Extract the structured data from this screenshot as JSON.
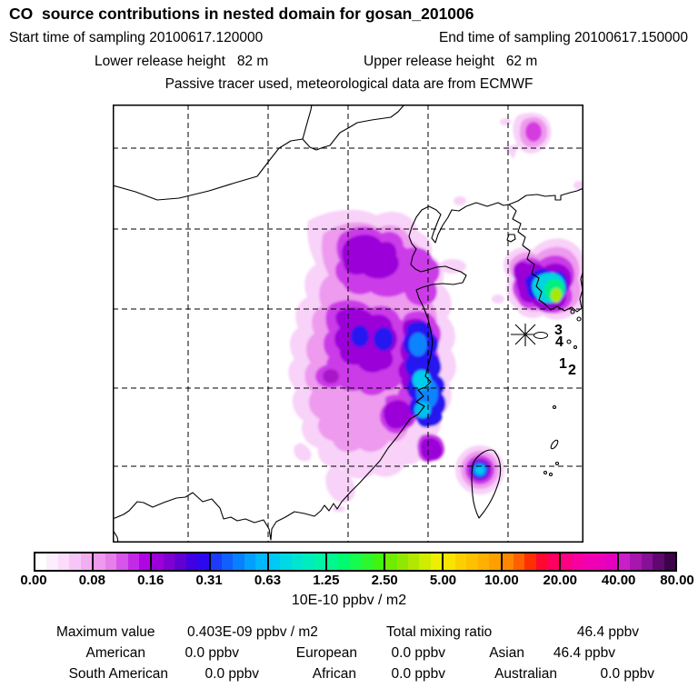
{
  "header": {
    "title": "CO  source contributions in nested domain for gosan_201006",
    "start_time": "Start time of sampling 20100617.120000",
    "end_time": "End time of sampling 20100617.150000",
    "lower_release": "Lower release height   82 m",
    "upper_release": "Upper release height   62 m",
    "tracer_line": "Passive tracer used, meteorological data are from ECMWF"
  },
  "map": {
    "marker_labels": [
      "3",
      "4",
      "1",
      "2"
    ]
  },
  "colorbar": {
    "unit": "10E-10 ppbv / m2",
    "tick_labels": [
      "0.00",
      "0.08",
      "0.16",
      "0.31",
      "0.63",
      "1.25",
      "2.50",
      "5.00",
      "10.00",
      "20.00",
      "40.00",
      "80.00"
    ],
    "segments": [
      {
        "from": 0.0,
        "to": 0.08,
        "colors": [
          "#ffffff",
          "#fdeefd",
          "#fbdcfb",
          "#f7c6f7",
          "#f2aef2"
        ]
      },
      {
        "from": 0.08,
        "to": 0.16,
        "colors": [
          "#ee9aee",
          "#e67fe9",
          "#d556e8",
          "#c32ae8",
          "#b005e2"
        ]
      },
      {
        "from": 0.16,
        "to": 0.31,
        "colors": [
          "#9c00d8",
          "#8000d2",
          "#6000d2",
          "#4000e0",
          "#2b08f0"
        ]
      },
      {
        "from": 0.31,
        "to": 0.63,
        "colors": [
          "#1c3cfa",
          "#0f60ff",
          "#0880ff",
          "#04a0ff",
          "#00b8ff"
        ]
      },
      {
        "from": 0.63,
        "to": 1.25,
        "colors": [
          "#00c8f4",
          "#00d8e4",
          "#00e4d0",
          "#00ecbc",
          "#00f4a8"
        ]
      },
      {
        "from": 1.25,
        "to": 2.5,
        "colors": [
          "#00f890",
          "#00fa70",
          "#14fc50",
          "#2cf830",
          "#40f410"
        ]
      },
      {
        "from": 2.5,
        "to": 5.0,
        "colors": [
          "#70ec00",
          "#90e800",
          "#b0e800",
          "#d0ec00",
          "#ecf000"
        ]
      },
      {
        "from": 5.0,
        "to": 10.0,
        "colors": [
          "#f8e400",
          "#fcd000",
          "#ffc000",
          "#ffb000",
          "#ffa000"
        ]
      },
      {
        "from": 10.0,
        "to": 20.0,
        "colors": [
          "#ff8800",
          "#ff6000",
          "#ff3000",
          "#ff0830",
          "#ff0060"
        ]
      },
      {
        "from": 20.0,
        "to": 40.0,
        "colors": [
          "#fc0080",
          "#f800a0",
          "#f000b0",
          "#ec00b8",
          "#e400c0"
        ]
      },
      {
        "from": 40.0,
        "to": 80.0,
        "colors": [
          "#c820c8",
          "#a816b0",
          "#881098",
          "#600870",
          "#3c0448"
        ]
      }
    ]
  },
  "stats": {
    "max_label": "Maximum value",
    "max_value": "0.403E-09 ppbv / m2",
    "total_label": "Total mixing ratio",
    "total_value": "46.4 ppbv",
    "regions": [
      {
        "label": "American",
        "value": "0.0 ppbv"
      },
      {
        "label": "European",
        "value": "0.0 ppbv"
      },
      {
        "label": "Asian",
        "value": "46.4 ppbv"
      },
      {
        "label": "South American",
        "value": "0.0 ppbv"
      },
      {
        "label": "African",
        "value": "0.0 ppbv"
      },
      {
        "label": "Australian",
        "value": "0.0 ppbv"
      }
    ]
  },
  "chart_data": {
    "type": "heatmap",
    "title": "CO  source contributions in nested domain for gosan_201006",
    "station": "gosan_201006",
    "start_time_of_sampling": "20100617.120000",
    "end_time_of_sampling": "20100617.150000",
    "lower_release_height_m": 82,
    "upper_release_height_m": 62,
    "note": "Passive tracer used, meteorological data are from ECMWF",
    "colorbar_levels": [
      0.0,
      0.08,
      0.16,
      0.31,
      0.63,
      1.25,
      2.5,
      5.0,
      10.0,
      20.0,
      40.0,
      80.0
    ],
    "colorbar_unit": "10E-10 ppbv / m2",
    "maximum_value": "0.403E-09 ppbv / m2",
    "total_mixing_ratio_ppbv": 46.4,
    "contributions_ppbv": {
      "American": 0.0,
      "European": 0.0,
      "Asian": 46.4,
      "South American": 0.0,
      "African": 0.0,
      "Australian": 0.0
    },
    "receptor_marker_labels": [
      "3",
      "4",
      "1",
      "2"
    ],
    "grid": "dashed lat/lon grid, 5 vertical and 5 horizontal lines",
    "legend_position": "bottom"
  }
}
